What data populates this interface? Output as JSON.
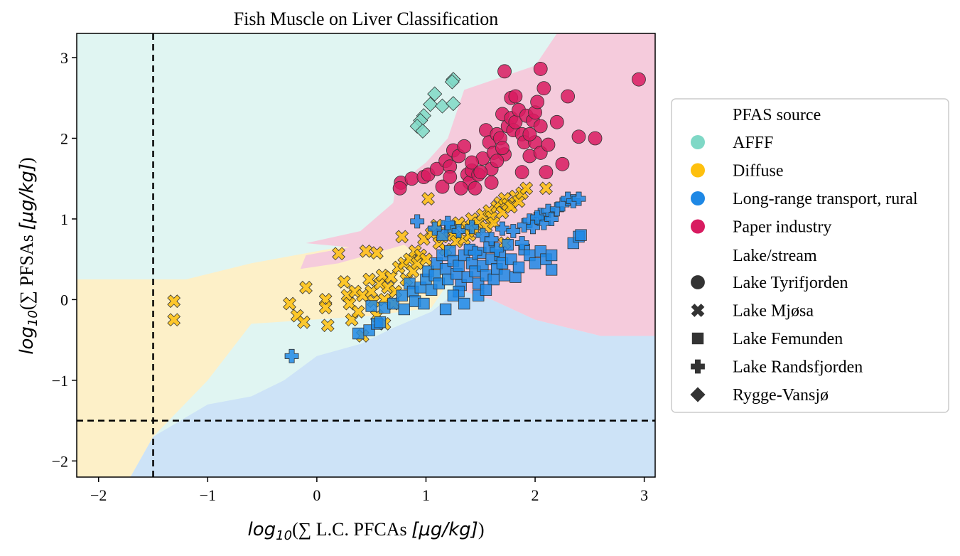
{
  "chart_data": {
    "type": "scatter",
    "title": "Fish Muscle on Liver Classification",
    "xlabel": {
      "prefix": "log",
      "sub": "10",
      "open": "(∑ ",
      "text": "L.C. PFCAs ",
      "unit": "[μg/kg]",
      "close": ")"
    },
    "ylabel": {
      "prefix": "log",
      "sub": "10",
      "open": "(∑ ",
      "text": "PFSAs ",
      "unit": "[μg/kg]",
      "close": ")"
    },
    "xlim": [
      -2.2,
      3.1
    ],
    "ylim": [
      -2.2,
      3.3
    ],
    "xticks": [
      -2,
      -1,
      0,
      1,
      2,
      3
    ],
    "yticks": [
      -2,
      -1,
      0,
      1,
      2,
      3
    ],
    "xtick_labels": [
      "−2",
      "−1",
      "0",
      "1",
      "2",
      "3"
    ],
    "ytick_labels": [
      "−2",
      "−1",
      "0",
      "1",
      "2",
      "3"
    ],
    "threshold_lines": {
      "x": -1.5,
      "y": -1.5,
      "style": "dashed"
    },
    "grid": false,
    "legend_position": "right-outside",
    "region_colors": {
      "AFFF": "#e0f5f2",
      "Paper industry": "#f5cbdc",
      "Diffuse": "#fdf0c8",
      "Long-range transport, rural": "#cde3f7"
    },
    "legend": {
      "source_title": "PFAS source",
      "sources": [
        {
          "name": "AFFF",
          "color": "#7fd8c6"
        },
        {
          "name": "Diffuse",
          "color": "#fec00e"
        },
        {
          "name": "Long-range transport, rural",
          "color": "#1e88e5"
        },
        {
          "name": "Paper industry",
          "color": "#d81b60"
        }
      ],
      "lake_title": "Lake/stream",
      "lakes": [
        {
          "name": "Lake Tyrifjorden",
          "marker": "circle"
        },
        {
          "name": "Lake Mjøsa",
          "marker": "x"
        },
        {
          "name": "Lake Femunden",
          "marker": "square"
        },
        {
          "name": "Lake Randsfjorden",
          "marker": "plus"
        },
        {
          "name": "Rygge-Vansjø",
          "marker": "diamond"
        }
      ]
    },
    "series": [
      {
        "name": "AFFF",
        "marker": "diamond",
        "points": [
          [
            1.25,
            2.73
          ],
          [
            1.24,
            2.7
          ],
          [
            1.08,
            2.55
          ],
          [
            1.04,
            2.42
          ],
          [
            1.15,
            2.4
          ],
          [
            1.25,
            2.43
          ],
          [
            0.98,
            2.28
          ],
          [
            0.95,
            2.22
          ],
          [
            0.92,
            2.15
          ],
          [
            0.97,
            2.09
          ]
        ]
      },
      {
        "name": "Paper industry",
        "marker": "circle",
        "points": [
          [
            0.77,
            1.45
          ],
          [
            0.76,
            1.38
          ],
          [
            0.87,
            1.5
          ],
          [
            0.98,
            1.52
          ],
          [
            1.02,
            1.55
          ],
          [
            1.1,
            1.62
          ],
          [
            1.18,
            1.72
          ],
          [
            1.22,
            1.65
          ],
          [
            1.25,
            1.85
          ],
          [
            1.3,
            1.78
          ],
          [
            1.35,
            1.9
          ],
          [
            1.38,
            1.55
          ],
          [
            1.4,
            1.45
          ],
          [
            1.42,
            1.6
          ],
          [
            1.45,
            1.38
          ],
          [
            1.48,
            1.55
          ],
          [
            1.52,
            1.75
          ],
          [
            1.55,
            2.1
          ],
          [
            1.58,
            1.95
          ],
          [
            1.6,
            1.62
          ],
          [
            1.62,
            1.82
          ],
          [
            1.65,
            2.05
          ],
          [
            1.68,
            2.0
          ],
          [
            1.7,
            2.3
          ],
          [
            1.72,
            1.8
          ],
          [
            1.75,
            2.15
          ],
          [
            1.78,
            2.25
          ],
          [
            1.8,
            2.1
          ],
          [
            1.82,
            2.2
          ],
          [
            1.85,
            2.35
          ],
          [
            1.88,
            2.05
          ],
          [
            1.9,
            1.95
          ],
          [
            1.92,
            2.28
          ],
          [
            1.95,
            1.78
          ],
          [
            1.98,
            2.22
          ],
          [
            2.0,
            2.32
          ],
          [
            2.02,
            2.45
          ],
          [
            2.05,
            2.15
          ],
          [
            2.08,
            2.62
          ],
          [
            2.05,
            2.86
          ],
          [
            2.1,
            1.58
          ],
          [
            2.2,
            2.2
          ],
          [
            2.25,
            1.68
          ],
          [
            2.3,
            2.52
          ],
          [
            2.4,
            2.02
          ],
          [
            2.55,
            2.0
          ],
          [
            2.95,
            2.73
          ],
          [
            1.72,
            2.83
          ],
          [
            1.78,
            2.5
          ],
          [
            1.82,
            2.52
          ],
          [
            1.32,
            1.38
          ],
          [
            1.6,
            1.45
          ],
          [
            1.15,
            1.4
          ],
          [
            1.22,
            1.52
          ],
          [
            1.42,
            1.7
          ],
          [
            1.5,
            1.58
          ],
          [
            1.65,
            1.72
          ],
          [
            1.7,
            1.88
          ],
          [
            1.88,
            1.58
          ],
          [
            2.0,
            1.95
          ],
          [
            2.05,
            1.82
          ],
          [
            2.12,
            1.92
          ],
          [
            1.95,
            2.05
          ]
        ]
      },
      {
        "name": "Diffuse",
        "marker": "x",
        "points": [
          [
            -1.31,
            -0.02
          ],
          [
            -1.31,
            -0.25
          ],
          [
            -0.25,
            -0.05
          ],
          [
            -0.18,
            -0.2
          ],
          [
            -0.12,
            -0.28
          ],
          [
            -0.1,
            0.15
          ],
          [
            0.08,
            0.0
          ],
          [
            0.08,
            -0.1
          ],
          [
            0.1,
            -0.32
          ],
          [
            0.2,
            0.57
          ],
          [
            0.25,
            0.22
          ],
          [
            0.28,
            0.05
          ],
          [
            0.3,
            -0.05
          ],
          [
            0.32,
            -0.25
          ],
          [
            0.35,
            0.1
          ],
          [
            0.38,
            -0.15
          ],
          [
            0.42,
            0.05
          ],
          [
            0.45,
            0.6
          ],
          [
            0.48,
            0.25
          ],
          [
            0.5,
            0.1
          ],
          [
            0.52,
            -0.02
          ],
          [
            0.55,
            0.58
          ],
          [
            0.58,
            0.2
          ],
          [
            0.6,
            0.3
          ],
          [
            0.62,
            0.0
          ],
          [
            0.65,
            0.15
          ],
          [
            0.68,
            0.28
          ],
          [
            0.7,
            -0.05
          ],
          [
            0.72,
            0.1
          ],
          [
            0.75,
            0.4
          ],
          [
            0.78,
            0.78
          ],
          [
            0.8,
            0.45
          ],
          [
            0.82,
            0.25
          ],
          [
            0.85,
            0.5
          ],
          [
            0.88,
            0.35
          ],
          [
            0.9,
            0.6
          ],
          [
            0.92,
            0.45
          ],
          [
            0.95,
            0.55
          ],
          [
            0.98,
            0.75
          ],
          [
            1.0,
            0.5
          ],
          [
            1.02,
            1.25
          ],
          [
            1.05,
            0.82
          ],
          [
            1.1,
            0.92
          ],
          [
            1.12,
            0.7
          ],
          [
            1.15,
            0.78
          ],
          [
            1.18,
            0.62
          ],
          [
            1.22,
            0.85
          ],
          [
            1.25,
            0.8
          ],
          [
            1.28,
            0.72
          ],
          [
            1.3,
            0.95
          ],
          [
            1.35,
            0.75
          ],
          [
            1.38,
            0.9
          ],
          [
            1.4,
            0.8
          ],
          [
            1.42,
            1.0
          ],
          [
            1.45,
            0.85
          ],
          [
            1.48,
            0.95
          ],
          [
            1.52,
            1.05
          ],
          [
            1.55,
            0.9
          ],
          [
            1.58,
            1.1
          ],
          [
            1.6,
            1.02
          ],
          [
            1.62,
            0.95
          ],
          [
            1.65,
            1.15
          ],
          [
            1.68,
            1.2
          ],
          [
            1.7,
            1.08
          ],
          [
            1.72,
            1.25
          ],
          [
            1.75,
            1.18
          ],
          [
            1.78,
            1.15
          ],
          [
            1.82,
            1.28
          ],
          [
            1.85,
            1.22
          ],
          [
            1.88,
            1.32
          ],
          [
            1.92,
            1.38
          ],
          [
            2.1,
            1.38
          ],
          [
            0.42,
            -0.45
          ],
          [
            0.55,
            -0.2
          ],
          [
            0.62,
            -0.3
          ],
          [
            1.72,
            0.7
          ]
        ]
      },
      {
        "name": "Long-range transport, rural",
        "marker": "square",
        "points": [
          [
            0.38,
            -0.42
          ],
          [
            0.48,
            -0.38
          ],
          [
            0.55,
            -0.3
          ],
          [
            0.58,
            -0.28
          ],
          [
            0.5,
            -0.08
          ],
          [
            0.62,
            -0.1
          ],
          [
            0.7,
            -0.05
          ],
          [
            0.78,
            0.05
          ],
          [
            0.8,
            -0.12
          ],
          [
            0.85,
            0.2
          ],
          [
            0.88,
            0.1
          ],
          [
            0.9,
            -0.02
          ],
          [
            0.95,
            0.15
          ],
          [
            0.98,
            -0.05
          ],
          [
            1.0,
            0.25
          ],
          [
            1.02,
            0.35
          ],
          [
            1.05,
            0.12
          ],
          [
            1.08,
            0.3
          ],
          [
            1.1,
            0.45
          ],
          [
            1.12,
            0.2
          ],
          [
            1.15,
            0.55
          ],
          [
            1.18,
            0.38
          ],
          [
            1.2,
            0.25
          ],
          [
            1.22,
            0.6
          ],
          [
            1.25,
            0.48
          ],
          [
            1.28,
            0.32
          ],
          [
            1.3,
            0.42
          ],
          [
            1.32,
            0.18
          ],
          [
            1.35,
            0.55
          ],
          [
            1.38,
            0.28
          ],
          [
            1.4,
            0.62
          ],
          [
            1.42,
            0.45
          ],
          [
            1.45,
            0.35
          ],
          [
            1.48,
            0.2
          ],
          [
            1.5,
            0.58
          ],
          [
            1.52,
            0.42
          ],
          [
            1.55,
            0.3
          ],
          [
            1.58,
            0.65
          ],
          [
            1.6,
            0.5
          ],
          [
            1.62,
            0.25
          ],
          [
            1.65,
            0.38
          ],
          [
            1.68,
            0.55
          ],
          [
            1.7,
            0.45
          ],
          [
            1.72,
            0.3
          ],
          [
            1.75,
            0.68
          ],
          [
            1.78,
            0.5
          ],
          [
            1.82,
            0.28
          ],
          [
            1.85,
            0.4
          ],
          [
            1.9,
            0.62
          ],
          [
            1.95,
            0.55
          ],
          [
            2.0,
            0.45
          ],
          [
            2.05,
            0.6
          ],
          [
            2.1,
            0.5
          ],
          [
            2.15,
            0.55
          ],
          [
            2.15,
            0.37
          ],
          [
            2.35,
            0.7
          ],
          [
            2.4,
            0.78
          ],
          [
            2.42,
            0.8
          ],
          [
            1.3,
            0.1
          ],
          [
            1.25,
            0.05
          ],
          [
            1.18,
            -0.12
          ],
          [
            1.35,
            -0.05
          ],
          [
            1.48,
            0.05
          ],
          [
            1.55,
            0.12
          ],
          [
            1.22,
            0.9
          ],
          [
            1.15,
            0.8
          ]
        ]
      },
      {
        "name": "Long-range transport, rural",
        "marker": "plus",
        "points": [
          [
            -0.23,
            -0.7
          ],
          [
            0.92,
            0.97
          ],
          [
            1.08,
            0.88
          ],
          [
            1.2,
            0.95
          ],
          [
            1.3,
            0.85
          ],
          [
            1.42,
            0.9
          ],
          [
            1.52,
            0.8
          ],
          [
            1.6,
            0.75
          ],
          [
            1.7,
            0.88
          ],
          [
            1.8,
            0.85
          ],
          [
            1.9,
            0.92
          ],
          [
            1.95,
            0.98
          ],
          [
            2.05,
            1.05
          ],
          [
            2.12,
            1.1
          ],
          [
            2.2,
            1.12
          ],
          [
            2.25,
            1.18
          ],
          [
            2.3,
            1.25
          ],
          [
            2.35,
            1.22
          ],
          [
            2.4,
            1.25
          ],
          [
            1.98,
            0.9
          ],
          [
            2.08,
            0.95
          ],
          [
            2.02,
            1.02
          ],
          [
            2.15,
            1.0
          ],
          [
            1.88,
            0.7
          ],
          [
            1.65,
            0.62
          ],
          [
            1.45,
            0.58
          ]
        ]
      }
    ]
  }
}
